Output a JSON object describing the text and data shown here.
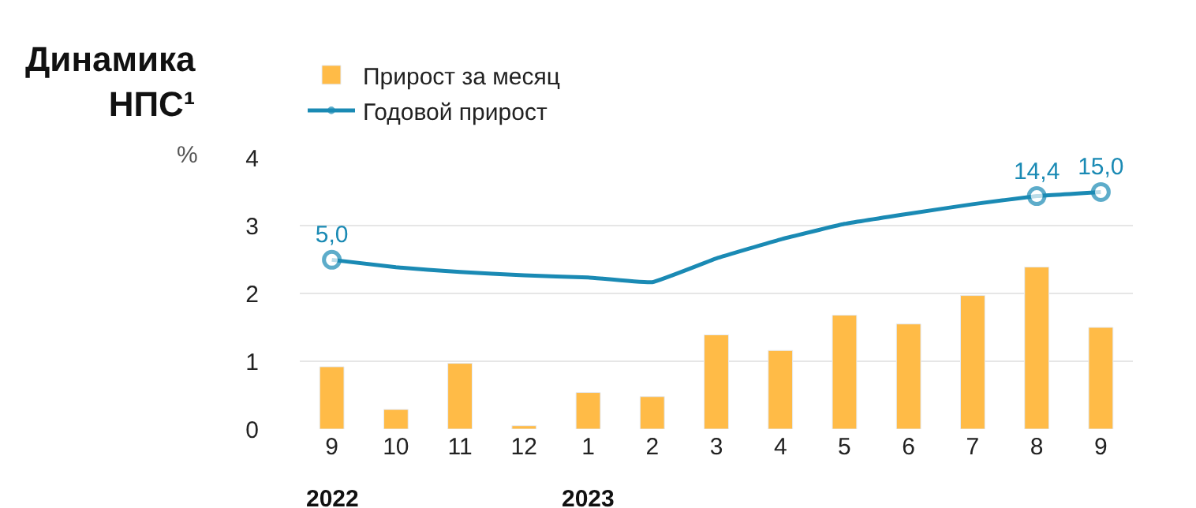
{
  "chart_data": {
    "type": "bar",
    "title": "Динамика\nНПС¹",
    "ylabel": "%",
    "categories": [
      "9",
      "10",
      "11",
      "12",
      "1",
      "2",
      "3",
      "4",
      "5",
      "6",
      "7",
      "8",
      "9"
    ],
    "series": [
      {
        "name": "Прирост за месяц",
        "color": "#ffbb47",
        "values": [
          0.92,
          0.29,
          0.97,
          0.05,
          0.54,
          0.48,
          1.39,
          1.16,
          1.68,
          1.55,
          1.97,
          2.39,
          1.5
        ]
      },
      {
        "name": "Годовой прирост",
        "type": "line",
        "axis": "y2",
        "color": "#1a8ab4",
        "values": [
          5.0,
          3.9,
          3.2,
          2.7,
          2.4,
          1.7,
          5.2,
          8.0,
          10.3,
          11.8,
          13.2,
          14.4,
          15.0
        ],
        "value_labels": [
          "5,0",
          null,
          null,
          null,
          null,
          null,
          null,
          null,
          null,
          null,
          null,
          "14,4",
          "15,0"
        ]
      }
    ],
    "annotations": [
      "2022",
      "2023"
    ],
    "ylim": [
      0,
      4
    ],
    "yticks": [
      0,
      1,
      2,
      3,
      4
    ],
    "grid": "y",
    "legend": "top left"
  }
}
